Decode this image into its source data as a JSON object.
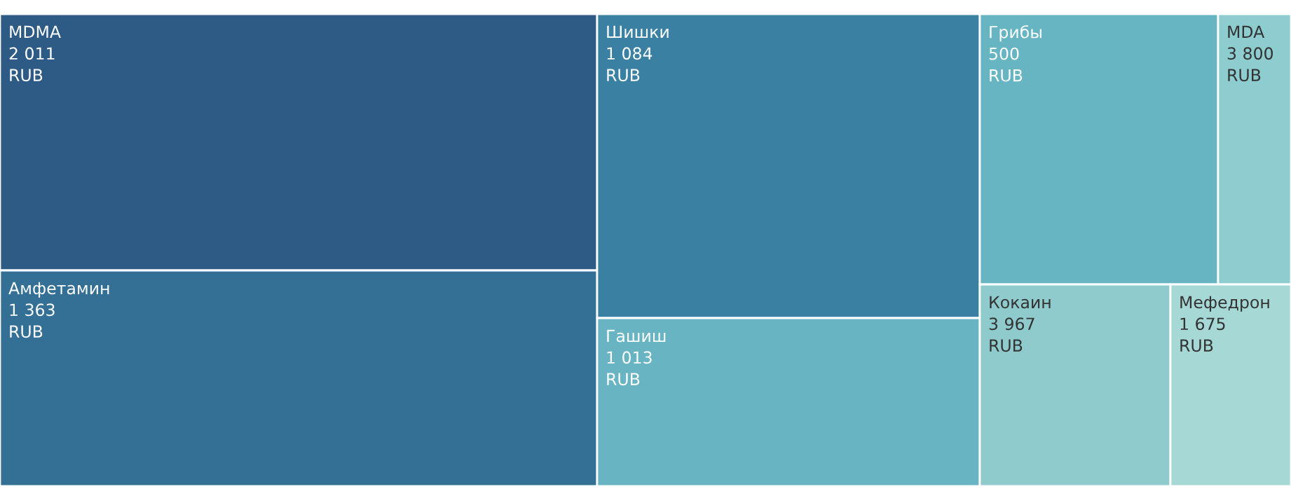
{
  "chart_data": {
    "type": "other",
    "categories": [
      "MDMA",
      "Амфетамин",
      "Шишки",
      "Гашиш",
      "Грибы",
      "MDA",
      "Кокаин",
      "Мефедрон"
    ],
    "values": [
      2011,
      1363,
      1084,
      1013,
      500,
      3800,
      3967,
      1675
    ],
    "data_labels": true,
    "annotations": [
      "RUB"
    ],
    "colors": [
      "#2e5a86",
      "#346f96",
      "#3a80a2",
      "#69b4c2",
      "#67b5c3",
      "#8dcdcf",
      "#8fcbcc",
      "#a6d9d5"
    ]
  }
}
